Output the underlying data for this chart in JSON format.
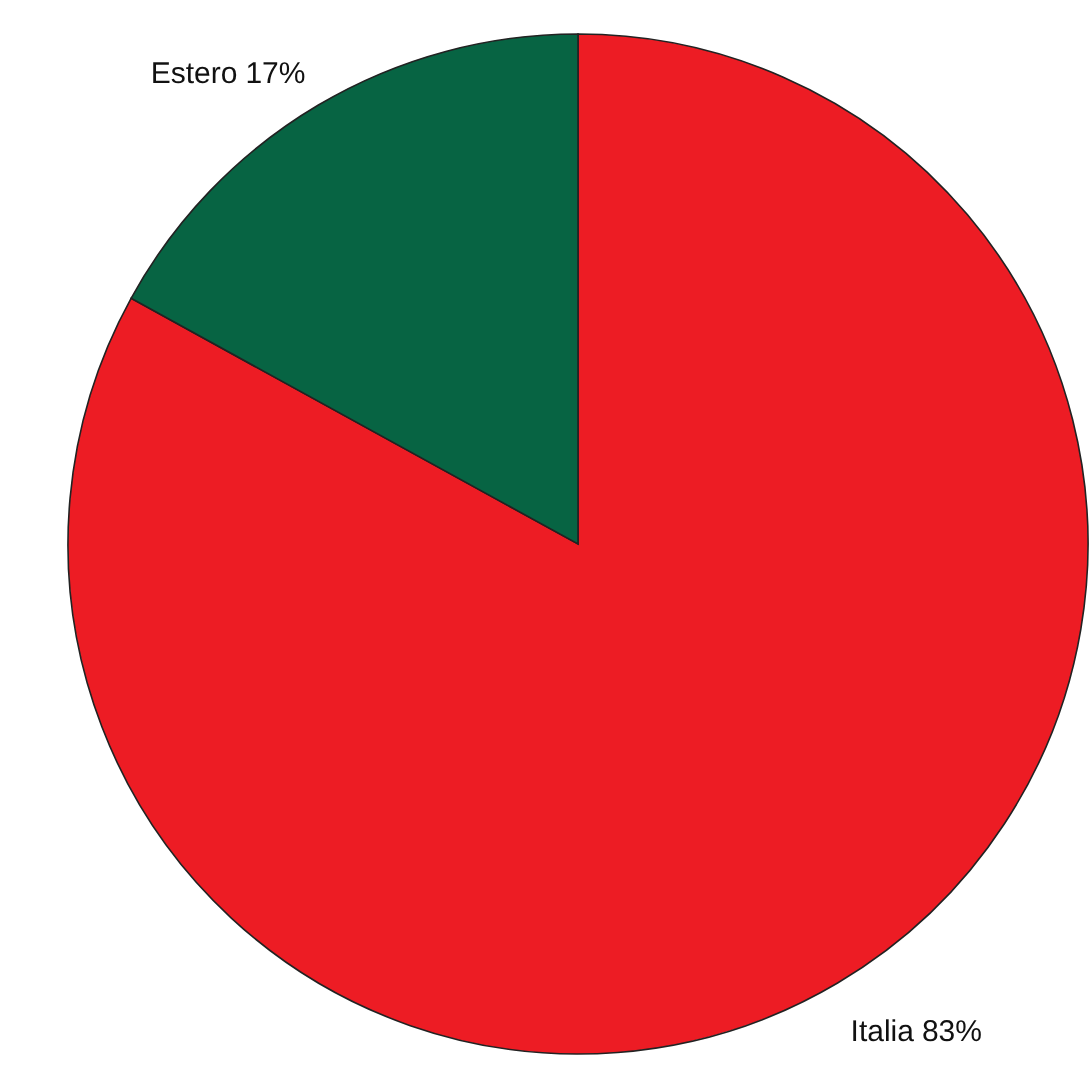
{
  "chart_data": {
    "type": "pie",
    "categories": [
      "Italia",
      "Estero"
    ],
    "values": [
      83,
      17
    ],
    "colors": [
      "#ed1c24",
      "#076443"
    ],
    "value_labels": [
      "83%",
      "17%"
    ]
  }
}
